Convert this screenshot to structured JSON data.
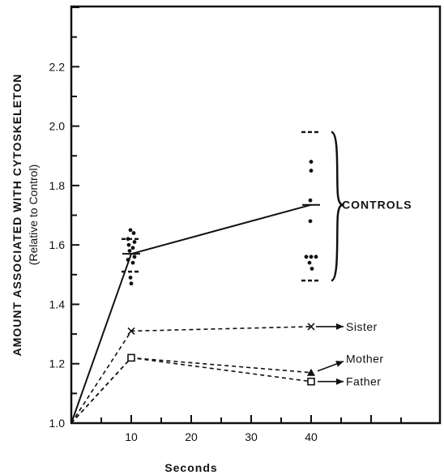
{
  "chart_data": {
    "type": "line",
    "xlabel": "Seconds",
    "ylabel": "AMOUNT ASSOCIATED WITH CYTOSKELETON",
    "ylabel_sub": "(Relative to Control)",
    "xlim": [
      0,
      60
    ],
    "ylim": [
      1.0,
      2.4
    ],
    "x_ticks": [
      10,
      20,
      30,
      40
    ],
    "y_ticks": [
      1.0,
      1.2,
      1.4,
      1.6,
      1.8,
      2.0,
      2.2
    ],
    "y_tick_labels": [
      "1.0",
      "1.2",
      "1.4",
      "1.6",
      "1.8",
      "2.0",
      "2.2"
    ],
    "grid": false,
    "series": [
      {
        "name": "CONTROLS",
        "style": "solid",
        "marker": "hbar",
        "x": [
          0,
          10,
          40
        ],
        "y": [
          1.0,
          1.57,
          1.735
        ]
      },
      {
        "name": "Sister",
        "style": "dashed",
        "marker": "x",
        "x": [
          0,
          10,
          40
        ],
        "y": [
          1.0,
          1.31,
          1.325
        ]
      },
      {
        "name": "Mother",
        "style": "dashed",
        "marker": "triangle",
        "x": [
          0,
          10,
          40
        ],
        "y": [
          1.0,
          1.22,
          1.17
        ]
      },
      {
        "name": "Father",
        "style": "dashed",
        "marker": "square",
        "x": [
          0,
          10,
          40
        ],
        "y": [
          1.0,
          1.22,
          1.14
        ]
      }
    ],
    "controls_points": {
      "10": [
        1.65,
        1.64,
        1.62,
        1.61,
        1.6,
        1.59,
        1.58,
        1.56,
        1.55,
        1.54,
        1.49,
        1.47
      ],
      "40": [
        1.88,
        1.85,
        1.75,
        1.68,
        1.56,
        1.56,
        1.56,
        1.54,
        1.52
      ]
    },
    "controls_range": {
      "10": [
        1.51,
        1.62
      ],
      "40": [
        1.48,
        1.98
      ]
    },
    "annotations": {
      "controls_label": "CONTROLS",
      "sister_label": "Sister",
      "mother_label": "Mother",
      "father_label": "Father"
    }
  }
}
